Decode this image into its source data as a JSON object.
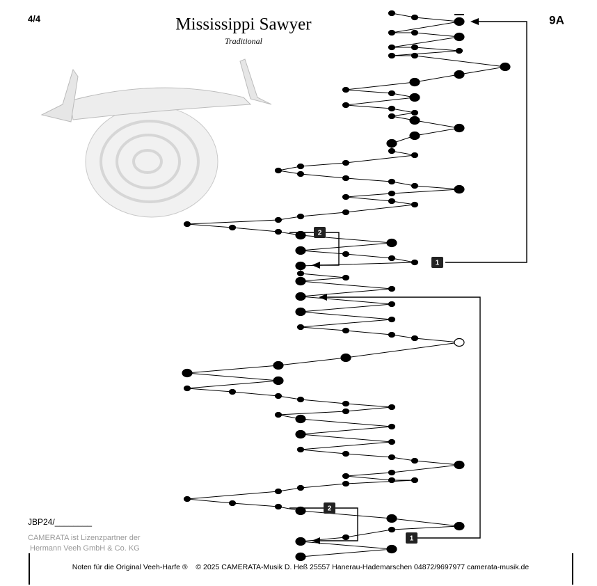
{
  "header": {
    "time_signature": "4/4",
    "title": "Mississippi Sawyer",
    "subtitle": "Traditional",
    "number": "9A"
  },
  "markers": [
    "2",
    "1",
    "2",
    "1"
  ],
  "side": {
    "code": "JBP24/________",
    "license_1": "CAMERATA ist Lizenzpartner der",
    "license_2": "Hermann Veeh GmbH & Co. KG"
  },
  "footer": {
    "text": "Noten für die Original Veeh-Harfe ®    © 2025 CAMERATA-Musik D. Heß 25557 Hanerau-Hademarschen 04872/9697977 camerata-musik.de"
  }
}
